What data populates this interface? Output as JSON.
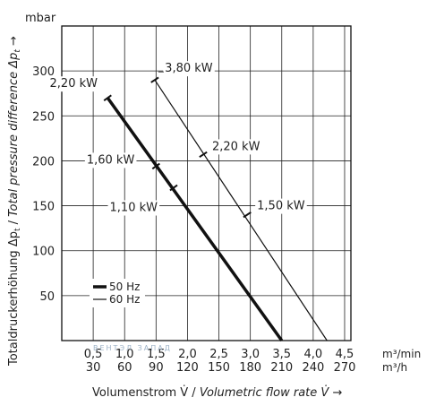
{
  "chart_data": {
    "type": "line",
    "title": "",
    "ylabel_unit": "mbar",
    "ylabel": {
      "prefix": "Totaldruckerhöhung Δp",
      "sub": "t",
      "sep": " / ",
      "italic": "Total pressure difference Δp",
      "italic_sub": "t",
      "arrow": "→"
    },
    "xlabel": {
      "prefix": "Volumenstrom V̇ / ",
      "italic": "Volumetric flow rate V̇",
      "arrow": "→"
    },
    "x_unit_primary": "m³/min",
    "x_unit_secondary": "m³/h",
    "xlim": [
      0,
      4.6
    ],
    "ylim": [
      0,
      350
    ],
    "x_ticks_primary": [
      "0,5",
      "1,0",
      "1,5",
      "2,0",
      "2,5",
      "3,0",
      "3,5",
      "4,0",
      "4,5"
    ],
    "x_ticks_secondary": [
      "30",
      "60",
      "90",
      "120",
      "150",
      "180",
      "210",
      "240",
      "270"
    ],
    "x_tick_values": [
      0.5,
      1.0,
      1.5,
      2.0,
      2.5,
      3.0,
      3.5,
      4.0,
      4.5
    ],
    "y_ticks": [
      "50",
      "100",
      "150",
      "200",
      "250",
      "300"
    ],
    "y_tick_values": [
      50,
      100,
      150,
      200,
      250,
      300
    ],
    "grid": true,
    "legend_position": "bottom-left",
    "series": [
      {
        "name": "50 Hz",
        "color": "#111111",
        "style": "bold",
        "x": [
          0.73,
          3.5
        ],
        "y": [
          270,
          0
        ]
      },
      {
        "name": "60 Hz",
        "color": "#111111",
        "style": "thin",
        "x": [
          1.48,
          4.22
        ],
        "y": [
          290,
          0
        ]
      }
    ],
    "annotations": [
      {
        "label": "2,20 kW",
        "series": 0,
        "x": 0.73,
        "y": 270
      },
      {
        "label": "1,60 kW",
        "series": 0,
        "x": 1.5,
        "y": 194
      },
      {
        "label": "1,10 kW",
        "series": 0,
        "x": 1.78,
        "y": 170
      },
      {
        "label": "3,80 kW",
        "series": 1,
        "x": 1.48,
        "y": 290
      },
      {
        "label": "2,20 kW",
        "series": 1,
        "x": 2.25,
        "y": 207
      },
      {
        "label": "1,50 kW",
        "series": 1,
        "x": 2.95,
        "y": 140
      }
    ],
    "watermark": "ВЕНТЭЛ ЗАПАД"
  }
}
